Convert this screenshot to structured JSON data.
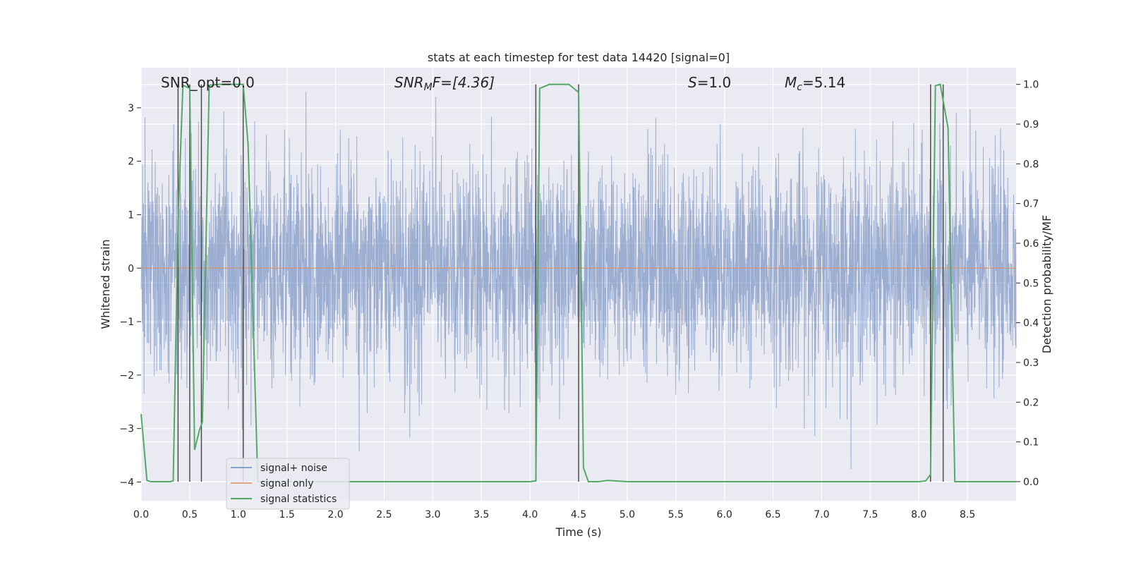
{
  "chart_data": {
    "type": "line",
    "title": "stats at each timestep for test data 14420 [signal=0]",
    "xlabel": "Time (s)",
    "ylabel_left": "Whitened strain",
    "ylabel_right": "Detection probability/MF",
    "xlim": [
      0.0,
      9.0
    ],
    "ylim_left": [
      -4.35,
      3.75
    ],
    "ylim_right": [
      -0.048,
      1.042
    ],
    "x_ticks": [
      "0.0",
      "0.5",
      "1.0",
      "1.5",
      "2.0",
      "2.5",
      "3.0",
      "3.5",
      "4.0",
      "4.5",
      "5.0",
      "5.5",
      "6.0",
      "6.5",
      "7.0",
      "7.5",
      "8.0",
      "8.5"
    ],
    "y_ticks_left": [
      "3",
      "2",
      "1",
      "0",
      "−1",
      "−2",
      "−3",
      "−4"
    ],
    "y_ticks_right": [
      "1.0",
      "0.9",
      "0.8",
      "0.7",
      "0.6",
      "0.5",
      "0.4",
      "0.3",
      "0.2",
      "0.1",
      "0.0"
    ],
    "grid": true,
    "legend_position": "lower-left",
    "annotations": {
      "snr_opt": "SNR_opt=0.0",
      "snr_mf_name": "SNR",
      "snr_mf_sub": "M",
      "snr_mf_rest": "F=[4.36]",
      "s_name": "S",
      "s_rest": "=1.0",
      "mc_name": "M",
      "mc_sub": "c",
      "mc_rest": "=5.14"
    },
    "series": [
      {
        "name": "signal+ noise",
        "color": "#4c72b0",
        "description_values": "whitened strain noise, amplitude ~ ±2 with spikes to ±3.3"
      },
      {
        "name": "signal only",
        "color": "#dd8452",
        "values_constant": 0
      },
      {
        "name": "signal statistics",
        "color": "#55a868",
        "x": [
          0.0,
          0.06,
          0.1,
          0.2,
          0.3,
          0.33,
          0.38,
          0.43,
          0.5,
          0.55,
          0.6,
          0.63,
          0.7,
          0.8,
          1.0,
          1.05,
          1.1,
          1.2,
          1.5,
          2.0,
          2.5,
          3.0,
          3.5,
          4.0,
          4.06,
          4.1,
          4.2,
          4.4,
          4.5,
          4.55,
          4.6,
          4.7,
          4.8,
          5.0,
          5.5,
          6.0,
          6.5,
          7.0,
          7.5,
          8.0,
          8.07,
          8.12,
          8.17,
          8.22,
          8.3,
          8.37,
          8.5,
          9.0
        ],
        "y": [
          0.17,
          0.003,
          0.0,
          0.0,
          0.0,
          0.002,
          0.66,
          0.998,
          0.99,
          0.08,
          0.13,
          0.15,
          0.998,
          1.0,
          1.0,
          1.0,
          0.85,
          0.0,
          0.0,
          0.0,
          0.0,
          0.0,
          0.0,
          0.0,
          0.002,
          0.99,
          1.0,
          1.0,
          0.98,
          0.035,
          0.0,
          0.0,
          0.003,
          0.0,
          0.0,
          0.0,
          0.0,
          0.0,
          0.0,
          0.0,
          0.002,
          0.018,
          0.997,
          1.0,
          0.89,
          0.0,
          0.0,
          0.0
        ]
      }
    ],
    "vertical_markers_x": [
      0.38,
      0.5,
      0.62,
      1.05,
      4.06,
      4.5,
      8.12,
      8.25
    ]
  }
}
